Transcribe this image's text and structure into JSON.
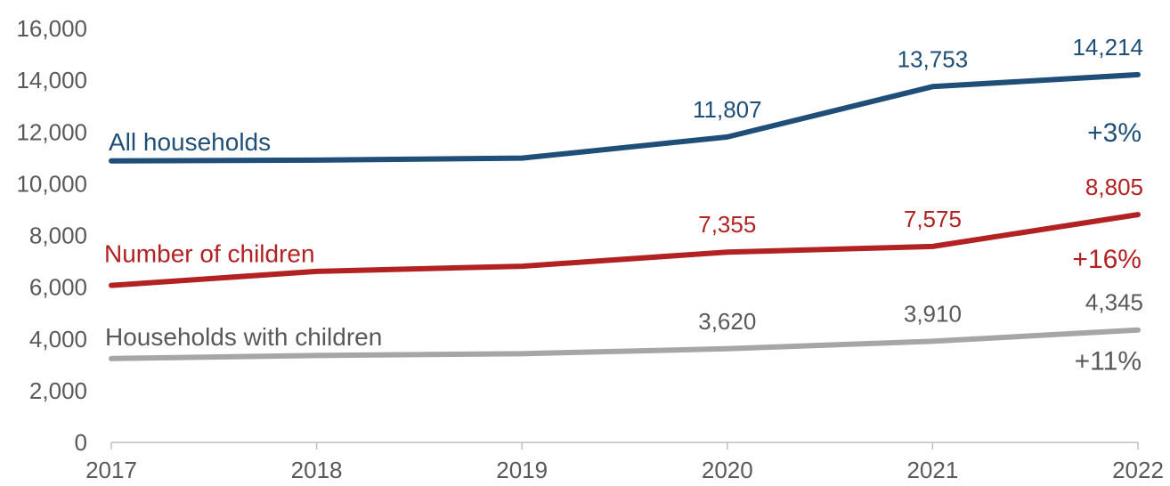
{
  "chart_data": {
    "type": "line",
    "title": "",
    "xlabel": "",
    "ylabel": "",
    "x": [
      "2017",
      "2018",
      "2019",
      "2020",
      "2021",
      "2022"
    ],
    "ylim": [
      0,
      16000
    ],
    "yticks": [
      "0",
      "2,000",
      "4,000",
      "6,000",
      "8,000",
      "10,000",
      "12,000",
      "14,000",
      "16,000"
    ],
    "grid": false,
    "series": [
      {
        "name": "All households",
        "color": "#1f4e79",
        "values": [
          10880,
          10910,
          10990,
          11807,
          13753,
          14214
        ],
        "labels": [
          "",
          "",
          "",
          "11,807",
          "13,753",
          "14,214"
        ],
        "change": "+3%"
      },
      {
        "name": "Number of children",
        "color": "#b22222",
        "values": [
          6070,
          6610,
          6810,
          7355,
          7575,
          8805
        ],
        "labels": [
          "",
          "",
          "",
          "7,355",
          "7,575",
          "8,805"
        ],
        "change": "+16%"
      },
      {
        "name": "Households with children",
        "color": "#a6a6a6",
        "label_color": "#595959",
        "values": [
          3240,
          3360,
          3430,
          3620,
          3910,
          4345
        ],
        "labels": [
          "",
          "",
          "",
          "3,620",
          "3,910",
          "4,345"
        ],
        "change": "+11%"
      }
    ]
  }
}
